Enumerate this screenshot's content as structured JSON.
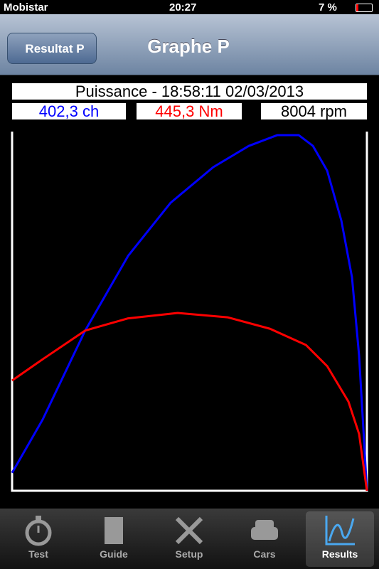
{
  "status_bar": {
    "carrier": "Mobistar",
    "time": "20:27",
    "battery": "7 %"
  },
  "nav_bar": {
    "back_button": "Resultat P",
    "title": "Graphe P"
  },
  "chart_data": {
    "type": "line",
    "title": "Puissance - 18:58:11 02/03/2013",
    "readouts": [
      {
        "text": "402,3 ch",
        "color": "#0000ff"
      },
      {
        "text": "445,3 Nm",
        "color": "#ff0000"
      },
      {
        "text": "8004 rpm",
        "color": "#000000"
      }
    ],
    "xlim": [
      0,
      100
    ],
    "ylim": [
      0,
      100
    ],
    "series": [
      {
        "color": "#0000ff",
        "x": [
          0,
          8.6,
          20.6,
          32.7,
          44.7,
          56.7,
          66.7,
          74.7,
          80.8,
          84.8,
          88.8,
          92.8,
          95.8,
          97.8,
          99.2,
          100
        ],
        "values": [
          5.0,
          19.8,
          44.6,
          65.4,
          80.2,
          90.1,
          96.0,
          99.0,
          99.0,
          96.0,
          89.1,
          75.2,
          59.4,
          37.6,
          13.9,
          0
        ]
      },
      {
        "color": "#ff0000",
        "x": [
          0,
          8.6,
          20.6,
          32.7,
          46.7,
          60.7,
          72.7,
          82.8,
          88.8,
          94.8,
          97.8,
          100
        ],
        "values": [
          30.7,
          36.6,
          44.6,
          48.0,
          49.5,
          48.3,
          45.1,
          40.6,
          34.7,
          24.8,
          15.8,
          0
        ]
      }
    ]
  },
  "tab_bar": {
    "tabs": [
      {
        "label": "Test"
      },
      {
        "label": "Guide"
      },
      {
        "label": "Setup"
      },
      {
        "label": "Cars"
      },
      {
        "label": "Results"
      }
    ],
    "selected": 4
  }
}
